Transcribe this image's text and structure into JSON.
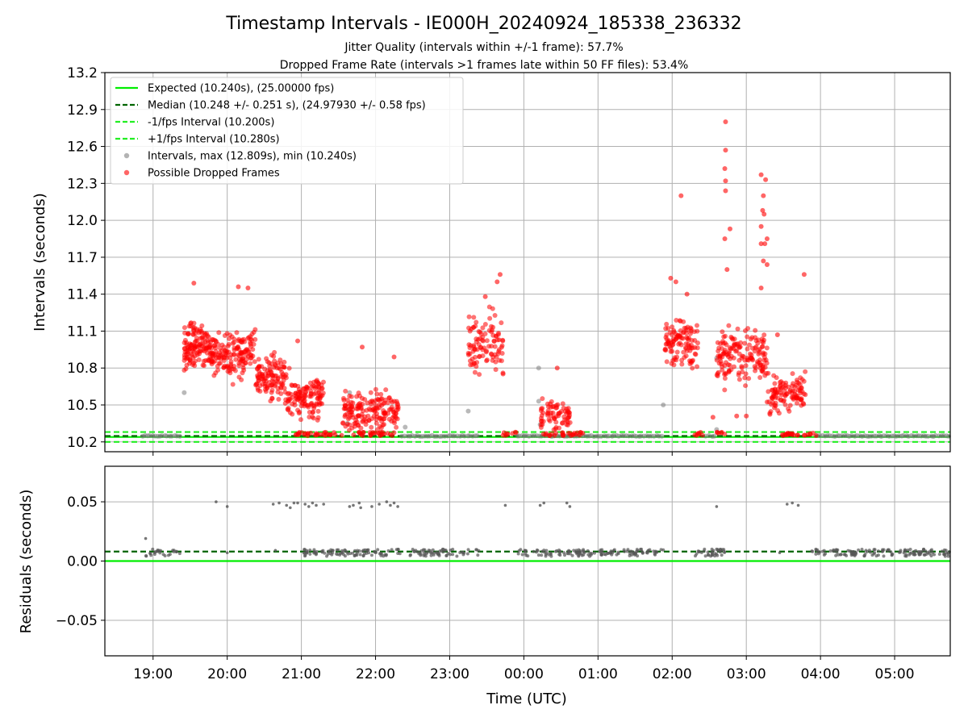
{
  "chart_data": [
    {
      "type": "scatter",
      "title": "Timestamp Intervals - IE000H_20240924_185338_236332",
      "subtitles": [
        "Jitter Quality (intervals within +/-1 frame): 57.7%",
        "Dropped Frame Rate (intervals >1 frames late within 50 FF files): 53.4%"
      ],
      "xlabel": "",
      "ylabel": "Intervals (seconds)",
      "ylim": [
        10.12,
        13.2
      ],
      "yticks": [
        "10.2",
        "10.5",
        "10.8",
        "11.1",
        "11.4",
        "11.7",
        "12.0",
        "12.3",
        "12.6",
        "12.9",
        "13.2"
      ],
      "x_unit": "hours after 00:00 UTC 2024-09-25 (negative = 2024-09-24)",
      "xlim": [
        -5.65,
        5.75
      ],
      "grid": true,
      "legend_position": "upper-left",
      "legend": [
        "Expected (10.240s), (25.00000 fps)",
        "Median (10.248 +/- 0.251 s), (24.97930 +/- 0.58 fps)",
        "-1/fps Interval (10.200s)",
        "+1/fps Interval (10.280s)",
        "Intervals, max (12.809s), min (10.240s)",
        "Possible Dropped Frames"
      ],
      "reference_lines": {
        "expected": 10.24,
        "median": 10.248,
        "minus_1_fps": 10.2,
        "plus_1_fps": 10.28
      },
      "colors": {
        "expected": "#00ee00",
        "median": "#006400",
        "fps_band": "#22ee22",
        "intervals": "#808080",
        "dropped": "#ff0000"
      },
      "dropped_clusters": [
        {
          "x_start": -4.58,
          "x_end": -4.28,
          "y_center": 10.98,
          "y_spread": 0.18,
          "count": 110
        },
        {
          "x_start": -4.28,
          "x_end": -3.62,
          "y_center": 10.92,
          "y_spread": 0.17,
          "count": 180
        },
        {
          "x_start": -3.62,
          "x_end": -3.22,
          "y_center": 10.72,
          "y_spread": 0.17,
          "count": 110
        },
        {
          "x_start": -3.22,
          "x_end": -2.7,
          "y_center": 10.55,
          "y_spread": 0.17,
          "count": 130
        },
        {
          "x_start": -2.45,
          "x_end": -1.68,
          "y_center": 10.45,
          "y_spread": 0.15,
          "count": 170
        },
        {
          "x_start": -0.75,
          "x_end": -0.28,
          "y_center": 11.0,
          "y_spread": 0.2,
          "count": 100
        },
        {
          "x_start": 0.22,
          "x_end": 0.63,
          "y_center": 10.42,
          "y_spread": 0.12,
          "count": 70
        },
        {
          "x_start": 1.9,
          "x_end": 2.35,
          "y_center": 11.0,
          "y_spread": 0.2,
          "count": 110
        },
        {
          "x_start": 2.6,
          "x_end": 3.28,
          "y_center": 10.9,
          "y_spread": 0.2,
          "count": 160
        },
        {
          "x_start": 3.28,
          "x_end": 3.8,
          "y_center": 10.6,
          "y_spread": 0.15,
          "count": 110
        }
      ],
      "dropped_outliers": [
        {
          "x": -4.45,
          "y": 11.49
        },
        {
          "x": -3.85,
          "y": 11.46
        },
        {
          "x": -3.72,
          "y": 11.45
        },
        {
          "x": -3.05,
          "y": 11.02
        },
        {
          "x": -2.18,
          "y": 10.97
        },
        {
          "x": -1.75,
          "y": 10.89
        },
        {
          "x": -0.32,
          "y": 11.56
        },
        {
          "x": -0.36,
          "y": 11.5
        },
        {
          "x": -0.52,
          "y": 11.38
        },
        {
          "x": 0.45,
          "y": 10.8
        },
        {
          "x": 2.12,
          "y": 12.2
        },
        {
          "x": 2.72,
          "y": 12.8
        },
        {
          "x": 2.72,
          "y": 12.57
        },
        {
          "x": 2.71,
          "y": 12.42
        },
        {
          "x": 2.72,
          "y": 12.32
        },
        {
          "x": 2.72,
          "y": 12.24
        },
        {
          "x": 2.78,
          "y": 11.93
        },
        {
          "x": 2.71,
          "y": 11.85
        },
        {
          "x": 2.74,
          "y": 11.6
        },
        {
          "x": 3.2,
          "y": 12.37
        },
        {
          "x": 3.23,
          "y": 12.2
        },
        {
          "x": 3.26,
          "y": 12.33
        },
        {
          "x": 3.22,
          "y": 12.08
        },
        {
          "x": 3.24,
          "y": 12.05
        },
        {
          "x": 3.2,
          "y": 11.95
        },
        {
          "x": 3.25,
          "y": 11.81
        },
        {
          "x": 3.2,
          "y": 11.81
        },
        {
          "x": 3.28,
          "y": 11.85
        },
        {
          "x": 3.23,
          "y": 11.67
        },
        {
          "x": 3.28,
          "y": 11.64
        },
        {
          "x": 3.2,
          "y": 11.45
        },
        {
          "x": 3.42,
          "y": 11.07
        },
        {
          "x": 3.78,
          "y": 11.56
        },
        {
          "x": 1.98,
          "y": 11.53
        },
        {
          "x": 2.05,
          "y": 11.5
        },
        {
          "x": 2.2,
          "y": 11.4
        },
        {
          "x": 2.55,
          "y": 10.4
        },
        {
          "x": 2.87,
          "y": 10.41
        },
        {
          "x": 3.0,
          "y": 10.41
        }
      ],
      "baseline_dropped_segments": [
        {
          "x_start": -3.1,
          "x_end": -2.45
        },
        {
          "x_start": -2.3,
          "x_end": -1.68
        },
        {
          "x_start": -0.28,
          "x_end": -0.1
        },
        {
          "x_start": 0.25,
          "x_end": 0.8
        },
        {
          "x_start": 2.3,
          "x_end": 2.45
        },
        {
          "x_start": 2.6,
          "x_end": 2.72
        },
        {
          "x_start": 3.45,
          "x_end": 3.95
        }
      ],
      "gray_interval_segments": [
        {
          "x_start": -5.15,
          "x_end": -4.62
        },
        {
          "x_start": -1.65,
          "x_end": -0.6
        },
        {
          "x_start": -0.1,
          "x_end": 1.88
        },
        {
          "x_start": 2.45,
          "x_end": 2.6
        },
        {
          "x_start": 3.95,
          "x_end": 5.75
        }
      ],
      "gray_outliers": [
        {
          "x": -4.58,
          "y": 10.6
        },
        {
          "x": -2.35,
          "y": 10.6
        },
        {
          "x": -2.37,
          "y": 10.46
        },
        {
          "x": -2.38,
          "y": 10.35
        },
        {
          "x": -1.6,
          "y": 10.32
        },
        {
          "x": -0.75,
          "y": 10.45
        },
        {
          "x": 0.2,
          "y": 10.8
        },
        {
          "x": 0.2,
          "y": 10.53
        },
        {
          "x": 0.22,
          "y": 10.34
        },
        {
          "x": 1.88,
          "y": 10.5
        },
        {
          "x": 2.6,
          "y": 10.88
        },
        {
          "x": 2.6,
          "y": 10.3
        }
      ]
    },
    {
      "type": "scatter",
      "title": "",
      "xlabel": "Time (UTC)",
      "ylabel": "Residuals (seconds)",
      "ylim": [
        -0.08,
        0.08
      ],
      "yticks": [
        "−0.05",
        "0.00",
        "0.05"
      ],
      "xticks": [
        "19:00",
        "20:00",
        "21:00",
        "22:00",
        "23:00",
        "00:00",
        "01:00",
        "02:00",
        "03:00",
        "04:00",
        "05:00"
      ],
      "xlim": [
        -5.65,
        5.75
      ],
      "grid": true,
      "reference_lines": {
        "zero": 0.0,
        "median_residual": 0.008
      },
      "residual_segments": [
        {
          "x_start": -5.1,
          "x_end": -4.62,
          "y": 0.007,
          "count": 25
        },
        {
          "x_start": -3.0,
          "x_end": -1.65,
          "y": 0.007,
          "count": 90
        },
        {
          "x_start": -1.55,
          "x_end": -0.6,
          "y": 0.007,
          "count": 60
        },
        {
          "x_start": -0.1,
          "x_end": 1.88,
          "y": 0.007,
          "count": 130
        },
        {
          "x_start": 2.3,
          "x_end": 2.72,
          "y": 0.007,
          "count": 35
        },
        {
          "x_start": 3.85,
          "x_end": 5.75,
          "y": 0.007,
          "count": 130
        }
      ],
      "residual_points": [
        {
          "x": -5.1,
          "y": 0.019
        },
        {
          "x": -4.15,
          "y": 0.05
        },
        {
          "x": -4.0,
          "y": 0.046
        },
        {
          "x": -3.38,
          "y": 0.048
        },
        {
          "x": -3.3,
          "y": 0.049
        },
        {
          "x": -3.2,
          "y": 0.047
        },
        {
          "x": -3.15,
          "y": 0.045
        },
        {
          "x": -3.1,
          "y": 0.049
        },
        {
          "x": -3.05,
          "y": 0.049
        },
        {
          "x": -2.95,
          "y": 0.048
        },
        {
          "x": -2.9,
          "y": 0.046
        },
        {
          "x": -2.85,
          "y": 0.049
        },
        {
          "x": -2.8,
          "y": 0.047
        },
        {
          "x": -2.7,
          "y": 0.048
        },
        {
          "x": -2.35,
          "y": 0.046
        },
        {
          "x": -2.3,
          "y": 0.047
        },
        {
          "x": -2.22,
          "y": 0.049
        },
        {
          "x": -2.2,
          "y": 0.045
        },
        {
          "x": -2.05,
          "y": 0.046
        },
        {
          "x": -1.95,
          "y": 0.048
        },
        {
          "x": -1.85,
          "y": 0.05
        },
        {
          "x": -1.8,
          "y": 0.047
        },
        {
          "x": -1.75,
          "y": 0.049
        },
        {
          "x": -1.7,
          "y": 0.046
        },
        {
          "x": -0.25,
          "y": 0.047
        },
        {
          "x": 0.22,
          "y": 0.047
        },
        {
          "x": 0.27,
          "y": 0.049
        },
        {
          "x": 0.58,
          "y": 0.049
        },
        {
          "x": 0.62,
          "y": 0.046
        },
        {
          "x": 2.6,
          "y": 0.046
        },
        {
          "x": 3.55,
          "y": 0.048
        },
        {
          "x": 3.62,
          "y": 0.049
        },
        {
          "x": 3.7,
          "y": 0.047
        },
        {
          "x": -4.0,
          "y": 0.007
        },
        {
          "x": -3.35,
          "y": 0.009
        },
        {
          "x": 3.45,
          "y": 0.007
        }
      ]
    }
  ]
}
